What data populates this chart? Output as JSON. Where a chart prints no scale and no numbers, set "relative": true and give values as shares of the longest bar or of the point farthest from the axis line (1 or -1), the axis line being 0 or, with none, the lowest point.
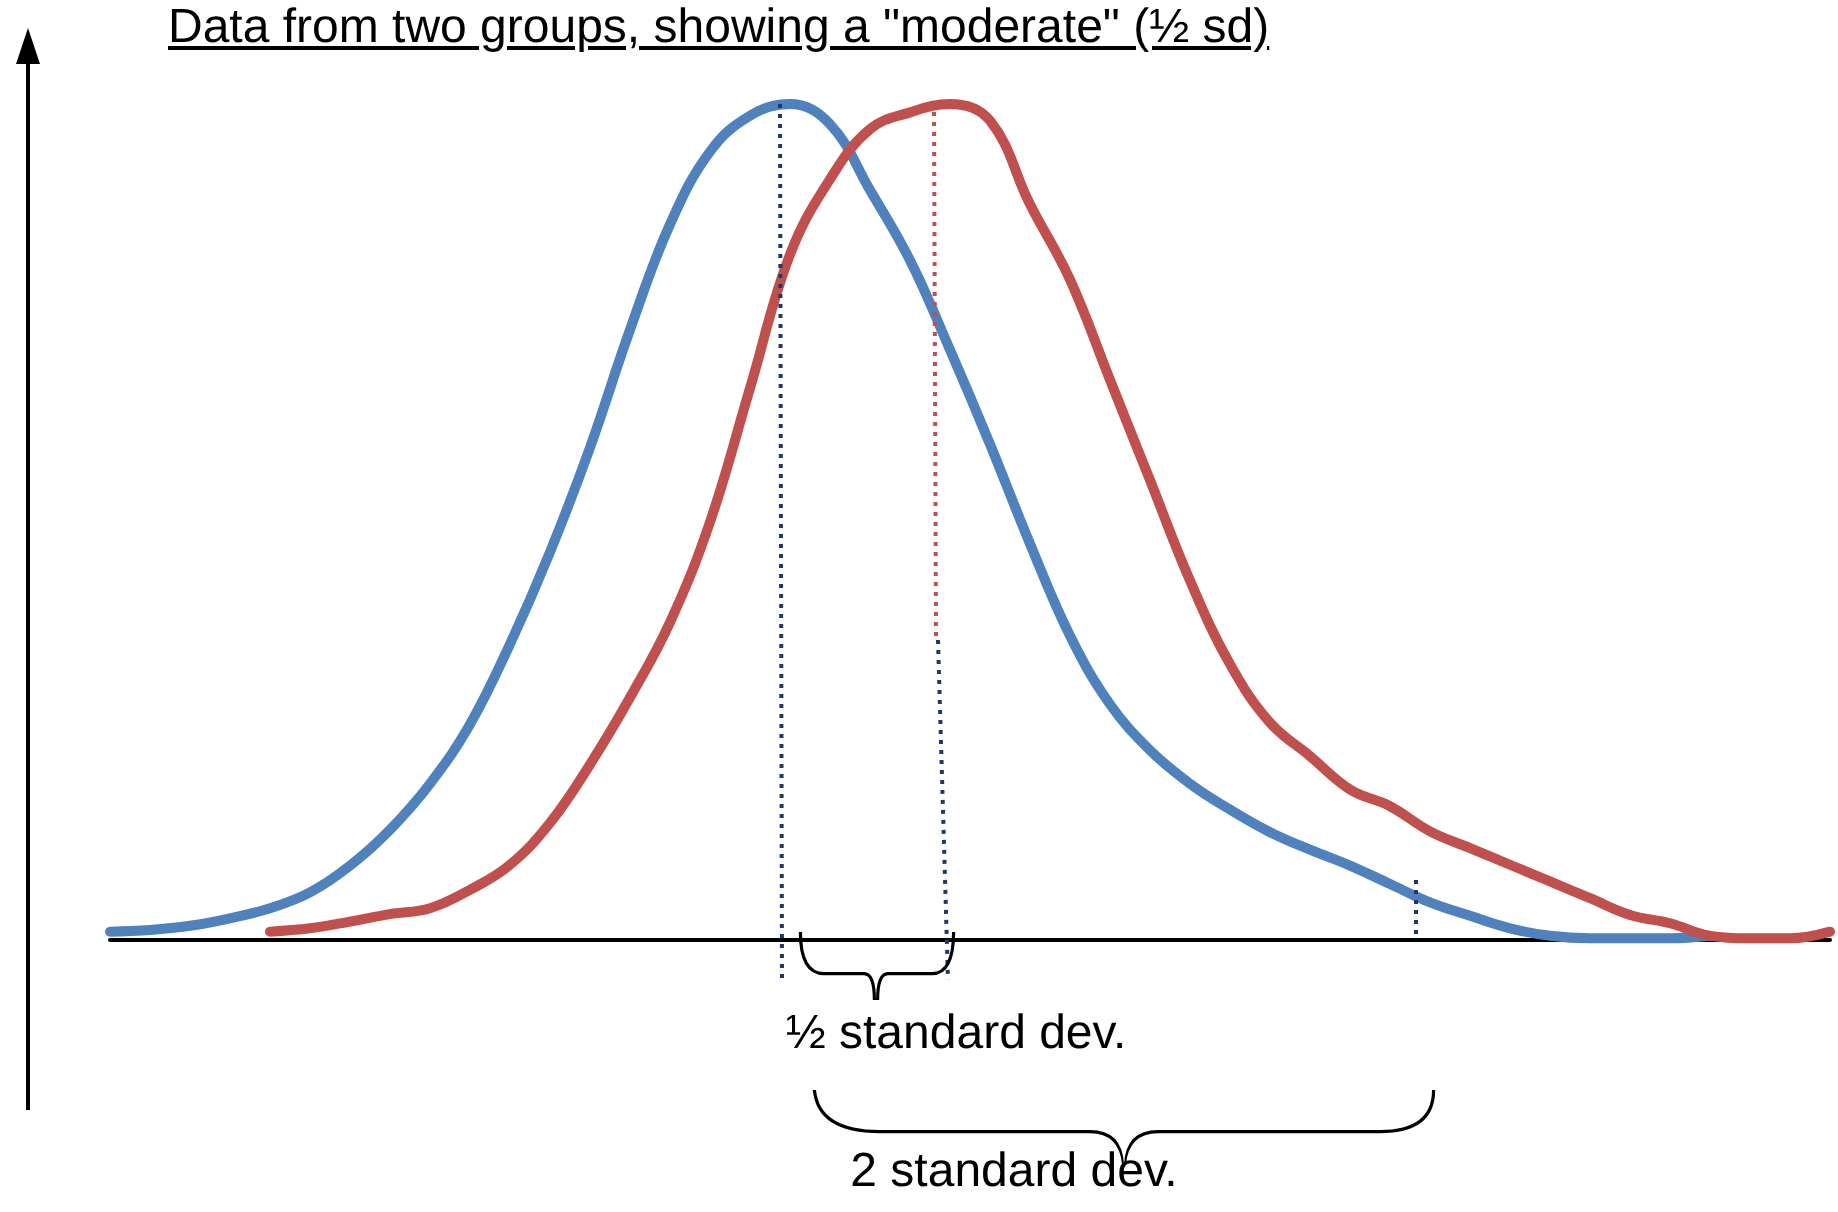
{
  "chart_data": {
    "type": "line",
    "title": "Data from two groups, showing a \"moderate\" (½ sd)",
    "relative": true,
    "marker": "none",
    "line_style": "solid",
    "categories": [
      null,
      null,
      null,
      null,
      null,
      null,
      null,
      null,
      null,
      null,
      null,
      null,
      null,
      null,
      null,
      null,
      null,
      null,
      null,
      null,
      null,
      null,
      null,
      null,
      null,
      null,
      null,
      null,
      null,
      null,
      null,
      null,
      null,
      null,
      null,
      null,
      null,
      null,
      null,
      null,
      null,
      null,
      null,
      null
    ],
    "series": [
      {
        "color": "#4f81bd",
        "values": [
          0.01,
          0.012,
          0.017,
          0.026,
          0.038,
          0.057,
          0.089,
          0.132,
          0.187,
          0.258,
          0.354,
          0.464,
          0.589,
          0.73,
          0.856,
          0.943,
          0.986,
          1,
          0.976,
          0.897,
          0.813,
          0.706,
          0.593,
          0.474,
          0.364,
          0.282,
          0.227,
          0.187,
          0.156,
          0.129,
          0.108,
          0.089,
          0.067,
          0.045,
          0.029,
          0.014,
          0.005,
          0.002,
          0.002,
          0.002,
          0.005,
          null,
          null,
          null
        ]
      },
      {
        "color": "#c0504d",
        "values": [
          null,
          null,
          null,
          null,
          0.01,
          0.014,
          0.022,
          0.031,
          0.038,
          0.06,
          0.09,
          0.14,
          0.21,
          0.29,
          0.38,
          0.5,
          0.66,
          0.82,
          0.91,
          0.97,
          0.99,
          1,
          0.98,
          0.88,
          0.79,
          0.67,
          0.55,
          0.43,
          0.33,
          0.26,
          0.22,
          0.18,
          0.16,
          0.13,
          0.11,
          0.09,
          0.07,
          0.05,
          0.03,
          0.02,
          0.005,
          0.002,
          0.002,
          0.01
        ]
      }
    ],
    "annotations": [
      "½ standard dev.",
      "2 standard dev."
    ]
  }
}
